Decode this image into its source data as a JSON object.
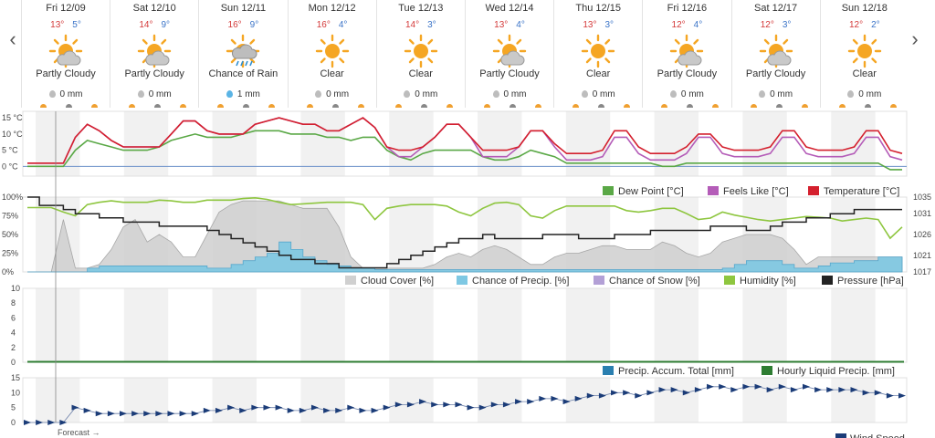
{
  "days": [
    {
      "date": "Fri 12/09",
      "high": "13°",
      "low": "5°",
      "condition": "Partly Cloudy",
      "icon": "partly-cloudy-icon",
      "precip": "0 mm"
    },
    {
      "date": "Sat 12/10",
      "high": "14°",
      "low": "9°",
      "condition": "Partly Cloudy",
      "icon": "partly-cloudy-icon",
      "precip": "0 mm"
    },
    {
      "date": "Sun 12/11",
      "high": "16°",
      "low": "9°",
      "condition": "Chance of Rain",
      "icon": "rain-icon",
      "precip": "1 mm"
    },
    {
      "date": "Mon 12/12",
      "high": "16°",
      "low": "4°",
      "condition": "Clear",
      "icon": "sun-icon",
      "precip": "0 mm"
    },
    {
      "date": "Tue 12/13",
      "high": "14°",
      "low": "3°",
      "condition": "Clear",
      "icon": "sun-icon",
      "precip": "0 mm"
    },
    {
      "date": "Wed 12/14",
      "high": "13°",
      "low": "4°",
      "condition": "Partly Cloudy",
      "icon": "partly-cloudy-icon",
      "precip": "0 mm"
    },
    {
      "date": "Thu 12/15",
      "high": "13°",
      "low": "3°",
      "condition": "Clear",
      "icon": "sun-icon",
      "precip": "0 mm"
    },
    {
      "date": "Fri 12/16",
      "high": "12°",
      "low": "4°",
      "condition": "Partly Cloudy",
      "icon": "partly-cloudy-icon",
      "precip": "0 mm"
    },
    {
      "date": "Sat 12/17",
      "high": "12°",
      "low": "3°",
      "condition": "Partly Cloudy",
      "icon": "partly-cloudy-icon",
      "precip": "0 mm"
    },
    {
      "date": "Sun 12/18",
      "high": "12°",
      "low": "2°",
      "condition": "Clear",
      "icon": "sun-icon",
      "precip": "0 mm"
    }
  ],
  "nav": {
    "prev": "‹",
    "next": "›"
  },
  "forecast_label": "Forecast →",
  "colors": {
    "dew_point": "#5aa846",
    "feels_like": "#b45cb8",
    "temperature": "#d4202e",
    "cloud": "#d0d0d0",
    "precip_chance": "#7ec8e3",
    "snow": "#b3a0d6",
    "humidity": "#8ec63f",
    "pressure": "#222222",
    "accum": "#2a7fb0",
    "liquid": "#2e7d32",
    "wind": "#1b3c78"
  },
  "chart_data": [
    {
      "type": "line",
      "ylabel": "°C",
      "yticks": [
        "15 °C",
        "10 °C",
        "5 °C",
        "0 °C"
      ],
      "ylim": [
        -3,
        17
      ],
      "legend": [
        "Dew Point [°C]",
        "Feels Like [°C]",
        "Temperature [°C]"
      ],
      "series": [
        {
          "name": "Temperature [°C]",
          "values": [
            1,
            1,
            1,
            1,
            9,
            13,
            11,
            8,
            6,
            6,
            6,
            6,
            10,
            14,
            14,
            11,
            10,
            10,
            10,
            13,
            14,
            15,
            14,
            13,
            13,
            11,
            11,
            13,
            15,
            12,
            6,
            5,
            5,
            6,
            9,
            13,
            13,
            9,
            5,
            5,
            5,
            6,
            11,
            11,
            7,
            4,
            4,
            4,
            5,
            11,
            11,
            6,
            4,
            4,
            4,
            6,
            10,
            10,
            6,
            5,
            5,
            5,
            6,
            11,
            11,
            6,
            5,
            5,
            5,
            6,
            11,
            11,
            5,
            4
          ]
        },
        {
          "name": "Feels Like [°C]",
          "values": [
            1,
            1,
            1,
            1,
            9,
            13,
            11,
            8,
            6,
            6,
            6,
            6,
            10,
            14,
            14,
            11,
            10,
            10,
            10,
            13,
            14,
            15,
            14,
            13,
            13,
            11,
            11,
            13,
            15,
            12,
            6,
            3,
            3,
            6,
            9,
            13,
            13,
            9,
            3,
            3,
            3,
            6,
            11,
            11,
            6,
            2,
            2,
            2,
            3,
            9,
            9,
            4,
            2,
            2,
            2,
            4,
            9,
            9,
            4,
            3,
            3,
            3,
            4,
            9,
            9,
            4,
            3,
            3,
            3,
            4,
            9,
            9,
            3,
            2
          ]
        },
        {
          "name": "Dew Point [°C]",
          "values": [
            0,
            0,
            0,
            0,
            5,
            8,
            7,
            6,
            5,
            5,
            5,
            6,
            8,
            9,
            10,
            9,
            9,
            9,
            10,
            11,
            11,
            11,
            10,
            10,
            10,
            9,
            9,
            8,
            9,
            9,
            5,
            3,
            2,
            4,
            5,
            5,
            5,
            5,
            3,
            2,
            2,
            3,
            5,
            4,
            3,
            1,
            1,
            1,
            1,
            1,
            1,
            1,
            1,
            0,
            0,
            1,
            1,
            1,
            1,
            1,
            1,
            1,
            1,
            1,
            1,
            1,
            1,
            1,
            1,
            1,
            1,
            1,
            -1,
            -1
          ]
        }
      ]
    },
    {
      "type": "area",
      "yticks_left": [
        "100%",
        "75%",
        "50%",
        "25%",
        "0%"
      ],
      "yticks_right": [
        "1035",
        "1031",
        "1026",
        "1021",
        "1017"
      ],
      "legend": [
        "Cloud Cover [%]",
        "Chance of Precip. [%]",
        "Chance of Snow [%]",
        "Humidity [%]",
        "Pressure [hPa]"
      ],
      "series": [
        {
          "name": "Cloud Cover [%]",
          "values": [
            0,
            0,
            0,
            70,
            5,
            5,
            10,
            30,
            60,
            70,
            40,
            50,
            40,
            20,
            20,
            50,
            80,
            90,
            95,
            95,
            95,
            95,
            90,
            85,
            85,
            85,
            60,
            20,
            5,
            5,
            5,
            5,
            5,
            5,
            10,
            20,
            25,
            20,
            30,
            35,
            30,
            20,
            10,
            10,
            20,
            25,
            25,
            30,
            35,
            35,
            30,
            30,
            30,
            40,
            35,
            25,
            20,
            25,
            40,
            45,
            50,
            50,
            50,
            45,
            30,
            10,
            20,
            20,
            20,
            20,
            20,
            20,
            20,
            20
          ]
        },
        {
          "name": "Chance of Precip. [%]",
          "values": [
            0,
            0,
            0,
            0,
            0,
            5,
            8,
            8,
            8,
            8,
            8,
            8,
            8,
            8,
            8,
            5,
            5,
            10,
            15,
            20,
            25,
            40,
            30,
            20,
            15,
            10,
            8,
            5,
            5,
            3,
            3,
            3,
            3,
            3,
            3,
            3,
            3,
            3,
            3,
            3,
            3,
            3,
            3,
            3,
            3,
            3,
            3,
            3,
            3,
            3,
            3,
            3,
            3,
            3,
            3,
            3,
            3,
            3,
            5,
            10,
            15,
            15,
            15,
            10,
            5,
            5,
            8,
            12,
            12,
            15,
            15,
            20,
            20,
            20
          ]
        },
        {
          "name": "Humidity [%]",
          "values": [
            86,
            86,
            86,
            80,
            75,
            90,
            93,
            95,
            93,
            93,
            93,
            96,
            95,
            93,
            93,
            96,
            96,
            96,
            98,
            99,
            97,
            93,
            90,
            91,
            92,
            93,
            93,
            93,
            90,
            70,
            85,
            88,
            90,
            90,
            90,
            88,
            80,
            75,
            85,
            92,
            93,
            90,
            75,
            72,
            82,
            88,
            88,
            88,
            88,
            88,
            82,
            80,
            82,
            85,
            85,
            78,
            70,
            72,
            80,
            76,
            73,
            70,
            68,
            70,
            72,
            74,
            73,
            72,
            68,
            70,
            72,
            70,
            45,
            60
          ]
        },
        {
          "name": "Pressure [hPa]",
          "values": [
            1035,
            1033,
            1033,
            1032,
            1031,
            1031,
            1030,
            1030,
            1029,
            1029,
            1029,
            1028,
            1028,
            1028,
            1028,
            1027,
            1026,
            1025,
            1024,
            1023,
            1022,
            1021,
            1020,
            1020,
            1019,
            1019,
            1018,
            1018,
            1018,
            1018,
            1019,
            1020,
            1021,
            1022,
            1023,
            1024,
            1025,
            1025,
            1026,
            1025,
            1025,
            1025,
            1025,
            1026,
            1026,
            1026,
            1025,
            1025,
            1025,
            1026,
            1026,
            1026,
            1027,
            1027,
            1027,
            1027,
            1027,
            1028,
            1028,
            1028,
            1027,
            1027,
            1028,
            1029,
            1029,
            1030,
            1030,
            1031,
            1031,
            1032,
            1032,
            1032,
            1032,
            1032
          ]
        }
      ]
    },
    {
      "type": "bar",
      "yticks": [
        "10",
        "8",
        "6",
        "4",
        "2",
        "0"
      ],
      "ylim": [
        0,
        10
      ],
      "legend": [
        "Precip. Accum. Total [mm]",
        "Hourly Liquid Precip. [mm]"
      ],
      "series": [
        {
          "name": "Precip. Accum. Total [mm]",
          "values": [
            0
          ]
        },
        {
          "name": "Hourly Liquid Precip. [mm]",
          "values": [
            0
          ]
        }
      ]
    },
    {
      "type": "line",
      "yticks": [
        "15",
        "10",
        "5",
        "0"
      ],
      "ylim": [
        0,
        15
      ],
      "legend": [
        "Wind Speed"
      ],
      "series": [
        {
          "name": "Wind Speed",
          "values": [
            0,
            0,
            0,
            0,
            5,
            4,
            3,
            3,
            3,
            3,
            3,
            3,
            3,
            3,
            3,
            4,
            4,
            5,
            4,
            5,
            5,
            5,
            4,
            4,
            5,
            4,
            4,
            5,
            4,
            4,
            5,
            6,
            6,
            7,
            6,
            6,
            6,
            5,
            5,
            6,
            6,
            7,
            7,
            8,
            8,
            7,
            8,
            9,
            9,
            10,
            10,
            9,
            10,
            11,
            11,
            10,
            11,
            12,
            12,
            11,
            12,
            12,
            11,
            12,
            11,
            12,
            11,
            11,
            11,
            11,
            10,
            10,
            9,
            9
          ]
        }
      ]
    }
  ]
}
